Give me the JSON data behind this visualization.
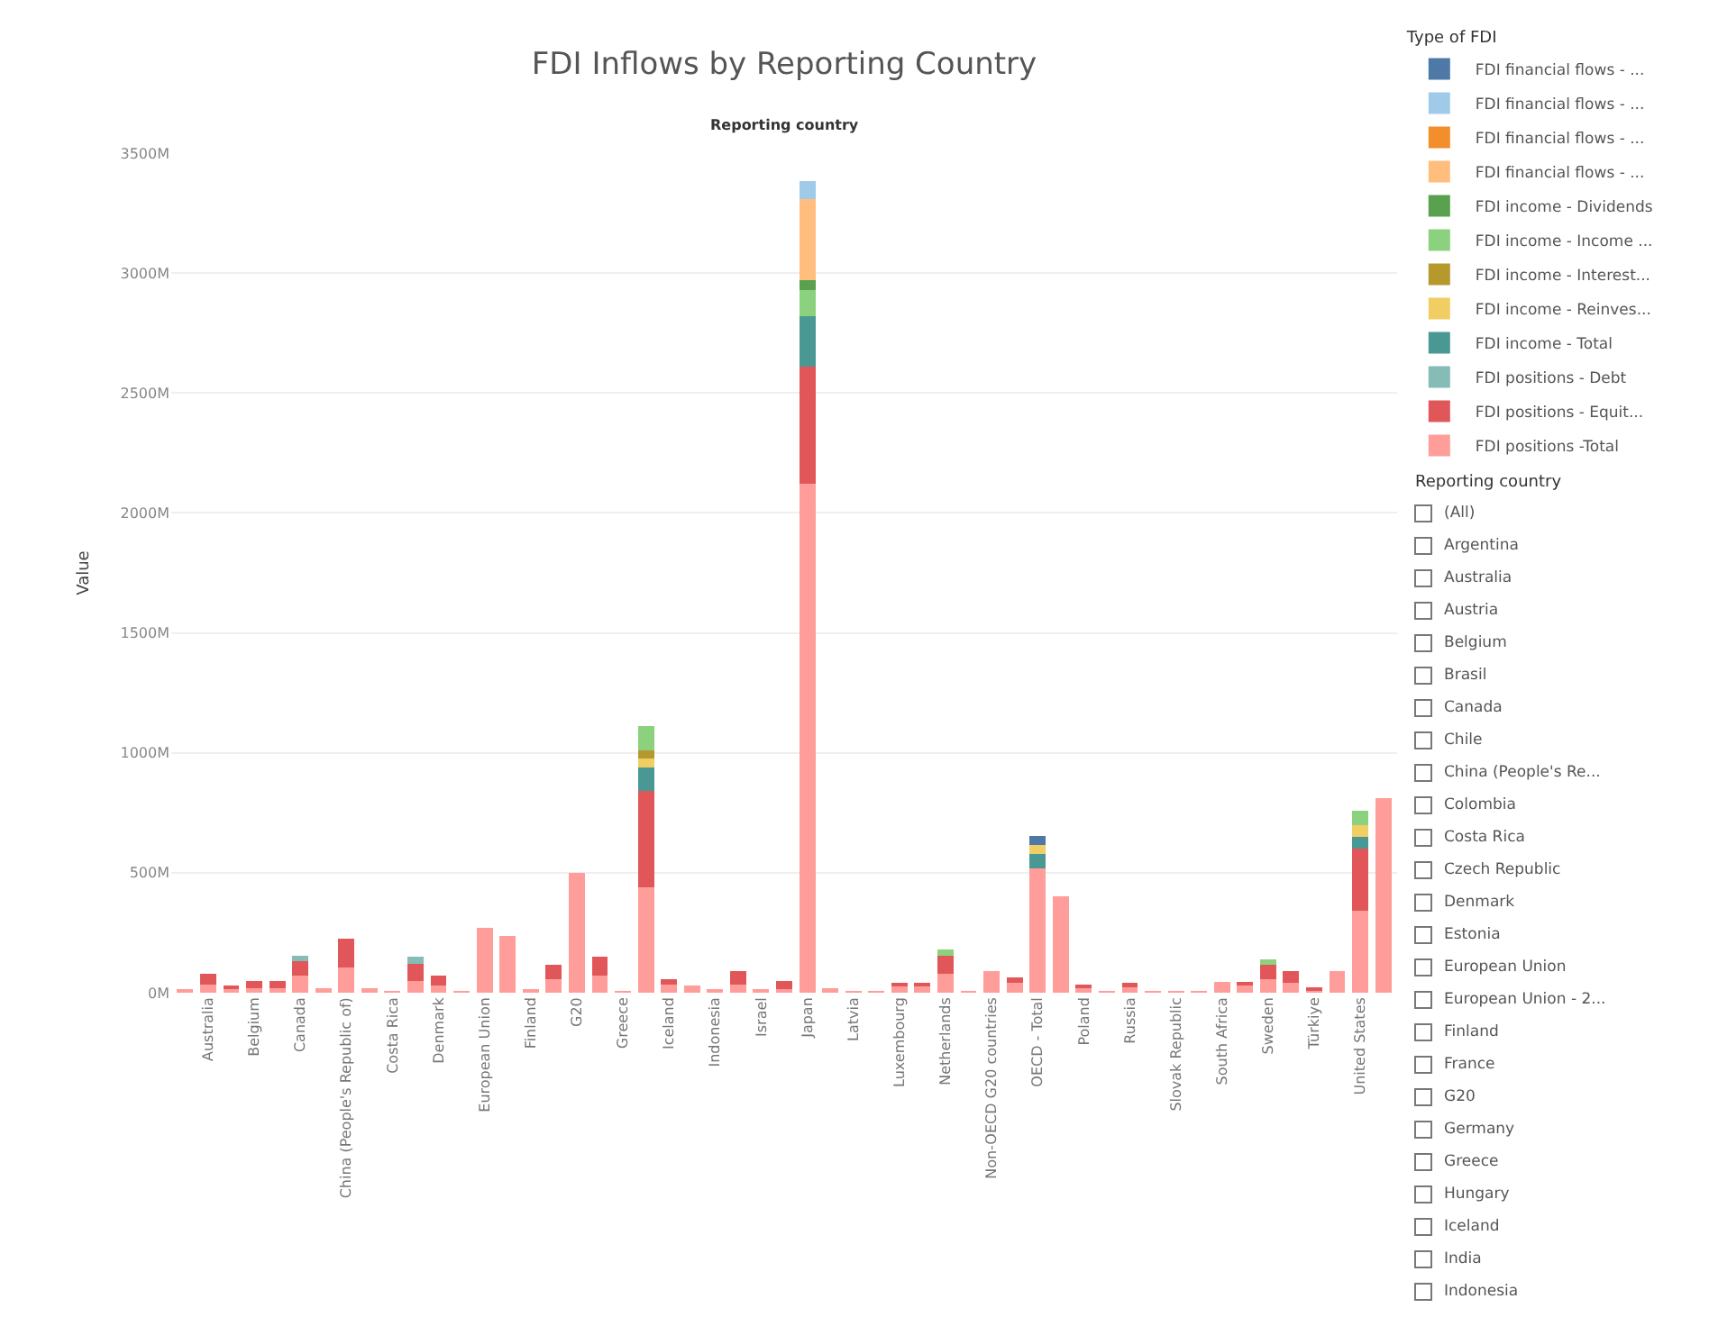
{
  "chart_data": {
    "type": "bar",
    "title": "FDI Inflows by Reporting Country",
    "subtitle": "Reporting country",
    "ylabel": "Value",
    "legend_title": "Type of FDI",
    "categories": [
      null,
      "Australia",
      null,
      "Belgium",
      null,
      "Canada",
      null,
      "China (People's Republic of)",
      null,
      "Costa Rica",
      null,
      "Denmark",
      null,
      "European Union",
      null,
      "Finland",
      null,
      "G20",
      null,
      "Greece",
      null,
      "Iceland",
      null,
      "Indonesia",
      null,
      "Israel",
      null,
      "Japan",
      null,
      "Latvia",
      null,
      "Luxembourg",
      null,
      "Netherlands",
      null,
      "Non-OECD G20 countries",
      null,
      "OECD - Total",
      null,
      "Poland",
      null,
      "Russia",
      null,
      "Slovak Republic",
      null,
      "South Africa",
      null,
      "Sweden",
      null,
      "Türkiye",
      null,
      "United States",
      null
    ],
    "stacked": true,
    "series": [
      {
        "name": "FDI positions -Total",
        "color": "#ff9d9a",
        "values": [
          10,
          35,
          15,
          20,
          20,
          70,
          20,
          105,
          20,
          5,
          50,
          30,
          5,
          270,
          235,
          10,
          55,
          500,
          70,
          5,
          440,
          35,
          30,
          15,
          35,
          15,
          15,
          2120,
          20,
          5,
          5,
          25,
          25,
          80,
          5,
          90,
          40,
          520,
          400,
          20,
          5,
          30,
          2,
          3,
          3,
          45,
          30,
          55,
          40,
          10,
          90,
          340,
          810
        ]
      },
      {
        "name": "FDI positions - Equit...",
        "color": "#e15759",
        "values": [
          null,
          45,
          10,
          30,
          30,
          60,
          null,
          120,
          null,
          null,
          70,
          40,
          null,
          null,
          null,
          null,
          60,
          null,
          80,
          null,
          400,
          20,
          null,
          null,
          55,
          null,
          35,
          490,
          null,
          null,
          null,
          15,
          15,
          75,
          null,
          null,
          25,
          null,
          null,
          15,
          null,
          10,
          null,
          null,
          null,
          null,
          15,
          60,
          50,
          7,
          null,
          260,
          null
        ]
      },
      {
        "name": "FDI positions - Debt",
        "color": "#86bcb6",
        "values": [
          null,
          null,
          null,
          null,
          null,
          25,
          null,
          null,
          null,
          null,
          30,
          null,
          null,
          null,
          null,
          null,
          null,
          null,
          null,
          null,
          null,
          null,
          null,
          null,
          null,
          null,
          null,
          null,
          null,
          null,
          null,
          null,
          null,
          null,
          null,
          null,
          null,
          null,
          null,
          null,
          null,
          null,
          null,
          null,
          null,
          null,
          null,
          null,
          null,
          null,
          null,
          null,
          null
        ]
      },
      {
        "name": "FDI income - Total",
        "color": "#499894",
        "values": [
          null,
          null,
          null,
          null,
          null,
          null,
          null,
          null,
          null,
          null,
          null,
          null,
          null,
          null,
          null,
          null,
          null,
          null,
          null,
          null,
          100,
          null,
          null,
          null,
          null,
          null,
          null,
          210,
          null,
          null,
          null,
          null,
          null,
          null,
          null,
          null,
          null,
          60,
          null,
          null,
          null,
          null,
          null,
          null,
          null,
          null,
          null,
          null,
          null,
          null,
          null,
          50,
          null
        ]
      },
      {
        "name": "FDI income - Reinves...",
        "color": "#f1ce63",
        "values": [
          null,
          null,
          null,
          null,
          null,
          null,
          null,
          null,
          null,
          null,
          null,
          null,
          null,
          null,
          null,
          null,
          null,
          null,
          null,
          null,
          35,
          null,
          null,
          null,
          null,
          null,
          null,
          null,
          null,
          null,
          null,
          null,
          null,
          null,
          null,
          null,
          null,
          35,
          null,
          null,
          null,
          null,
          null,
          null,
          null,
          null,
          null,
          null,
          null,
          null,
          null,
          50,
          null
        ]
      },
      {
        "name": "FDI income - Interest...",
        "color": "#b6992d",
        "values": [
          null,
          null,
          null,
          null,
          null,
          null,
          null,
          null,
          null,
          null,
          null,
          null,
          null,
          null,
          null,
          null,
          null,
          null,
          null,
          null,
          35,
          null,
          null,
          null,
          null,
          null,
          null,
          null,
          null,
          null,
          null,
          null,
          null,
          null,
          null,
          null,
          null,
          null,
          null,
          null,
          null,
          null,
          null,
          null,
          null,
          null,
          null,
          null,
          null,
          null,
          null,
          null,
          null
        ]
      },
      {
        "name": "FDI income - Income ...",
        "color": "#8cd17d",
        "values": [
          null,
          null,
          null,
          null,
          null,
          null,
          null,
          null,
          null,
          null,
          null,
          null,
          null,
          null,
          null,
          null,
          null,
          null,
          null,
          null,
          100,
          null,
          null,
          null,
          null,
          null,
          null,
          110,
          null,
          null,
          null,
          null,
          null,
          25,
          null,
          null,
          null,
          null,
          null,
          null,
          null,
          null,
          null,
          null,
          null,
          null,
          null,
          25,
          null,
          null,
          null,
          60,
          null
        ]
      },
      {
        "name": "FDI income - Dividends",
        "color": "#59a14f",
        "values": [
          null,
          null,
          null,
          null,
          null,
          null,
          null,
          null,
          null,
          null,
          null,
          null,
          null,
          null,
          null,
          null,
          null,
          null,
          null,
          null,
          null,
          null,
          null,
          null,
          null,
          null,
          null,
          40,
          null,
          null,
          null,
          null,
          null,
          null,
          null,
          null,
          null,
          null,
          null,
          null,
          null,
          null,
          null,
          null,
          null,
          null,
          null,
          null,
          null,
          null,
          null,
          null,
          null
        ]
      },
      {
        "name": "FDI financial flows - ...",
        "color": "#ffbe7d",
        "values": [
          null,
          null,
          null,
          null,
          null,
          null,
          null,
          null,
          null,
          null,
          null,
          null,
          null,
          null,
          null,
          null,
          null,
          null,
          null,
          null,
          null,
          null,
          null,
          null,
          null,
          null,
          null,
          340,
          null,
          null,
          null,
          null,
          null,
          null,
          null,
          null,
          null,
          null,
          null,
          null,
          null,
          null,
          null,
          null,
          null,
          null,
          null,
          null,
          null,
          null,
          null,
          null,
          null
        ]
      },
      {
        "name": "FDI financial flows - ...",
        "color": "#f28e2b",
        "values": [
          null,
          null,
          null,
          null,
          null,
          null,
          null,
          null,
          null,
          null,
          null,
          null,
          null,
          null,
          null,
          null,
          null,
          null,
          null,
          null,
          null,
          null,
          null,
          null,
          null,
          null,
          null,
          null,
          null,
          null,
          null,
          null,
          null,
          null,
          null,
          null,
          null,
          null,
          null,
          null,
          null,
          null,
          null,
          null,
          null,
          null,
          null,
          null,
          null,
          null,
          null,
          null,
          null
        ]
      },
      {
        "name": "FDI financial flows - ...",
        "color": "#a0cbe8",
        "values": [
          null,
          null,
          null,
          null,
          null,
          null,
          null,
          null,
          null,
          null,
          null,
          null,
          null,
          null,
          null,
          null,
          null,
          null,
          null,
          null,
          null,
          null,
          null,
          null,
          null,
          null,
          null,
          75,
          null,
          null,
          null,
          null,
          null,
          null,
          null,
          null,
          null,
          null,
          null,
          null,
          null,
          null,
          null,
          null,
          null,
          null,
          null,
          null,
          null,
          null,
          null,
          null,
          null
        ]
      },
      {
        "name": "FDI financial flows - ...",
        "color": "#4e79a7",
        "values": [
          null,
          null,
          null,
          null,
          null,
          null,
          null,
          null,
          null,
          null,
          null,
          null,
          null,
          null,
          null,
          null,
          null,
          null,
          null,
          null,
          null,
          null,
          null,
          null,
          null,
          null,
          null,
          null,
          null,
          null,
          null,
          null,
          null,
          null,
          null,
          null,
          null,
          40,
          null,
          null,
          null,
          null,
          null,
          null,
          null,
          null,
          null,
          null,
          null,
          null,
          null,
          null,
          null
        ]
      }
    ],
    "ylim": [
      0,
      3500
    ],
    "yticks": [
      {
        "value": 0,
        "label": "0M"
      },
      {
        "value": 500,
        "label": "500M"
      },
      {
        "value": 1000,
        "label": "1000M"
      },
      {
        "value": 1500,
        "label": "1500M"
      },
      {
        "value": 2000,
        "label": "2000M"
      },
      {
        "value": 2500,
        "label": "2500M"
      },
      {
        "value": 3000,
        "label": "3000M"
      },
      {
        "value": 3500,
        "label": "3500M"
      }
    ],
    "grid": "y",
    "legend": "top right",
    "annotations": [
      "Reporting country",
      "(All)",
      "Argentina",
      "Australia",
      "Austria",
      "Belgium",
      "Brasil",
      "Canada",
      "Chile",
      "China (People's Re...",
      "Colombia",
      "Costa Rica",
      "Czech Republic",
      "Denmark",
      "Estonia",
      "European Union",
      "European Union - 2...",
      "Finland",
      "France",
      "G20",
      "Germany",
      "Greece",
      "Hungary",
      "Iceland",
      "India",
      "Indonesia"
    ]
  }
}
